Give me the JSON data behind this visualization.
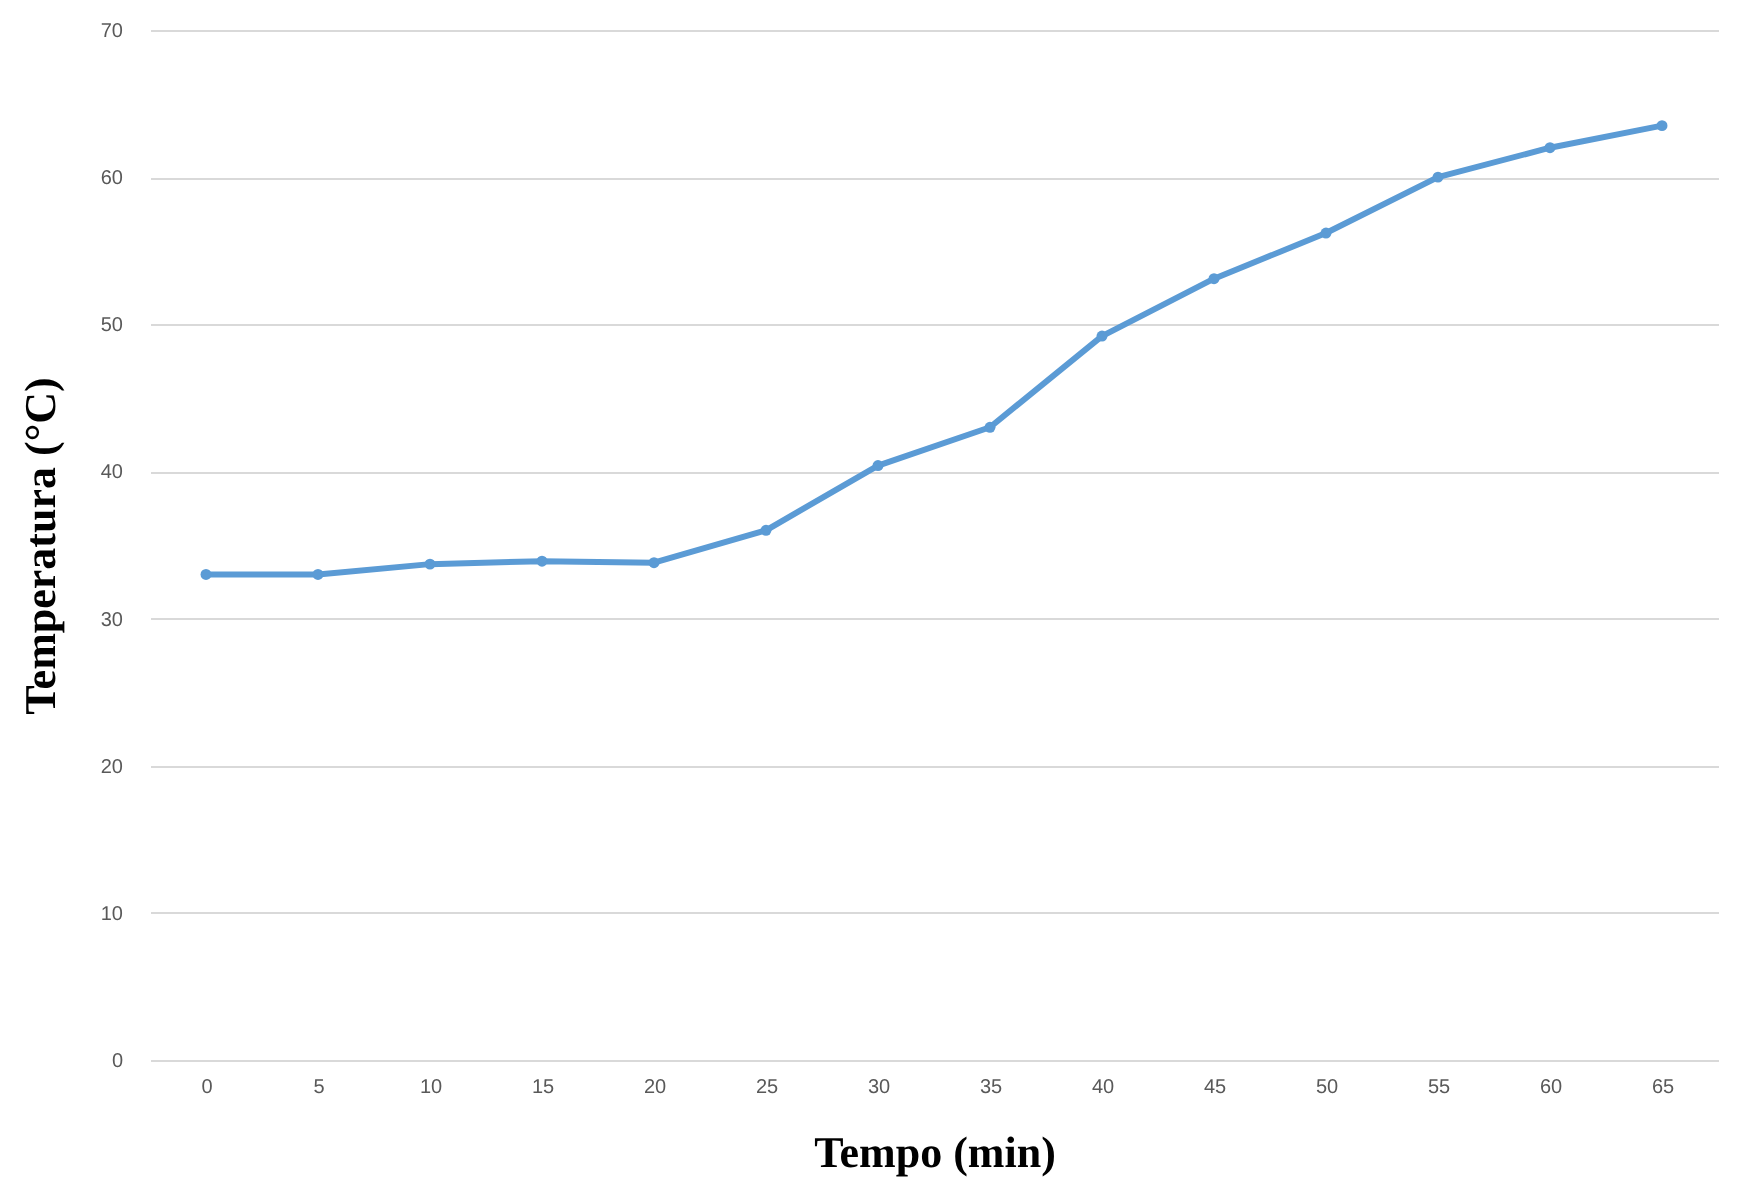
{
  "chart_data": {
    "type": "line",
    "xlabel": "Tempo (min)",
    "ylabel": "Temperatura (°C)",
    "categories": [
      "0",
      "5",
      "10",
      "15",
      "20",
      "25",
      "30",
      "35",
      "40",
      "45",
      "50",
      "55",
      "60",
      "65"
    ],
    "series": [
      {
        "color": "#5b9bd5",
        "values": [
          33,
          33,
          33.7,
          33.9,
          33.8,
          36,
          40.4,
          43,
          49.2,
          53.1,
          56.2,
          60,
          62,
          63.5
        ]
      }
    ],
    "ylim": [
      0,
      70
    ],
    "yticks": [
      0,
      10,
      20,
      30,
      40,
      50,
      60,
      70
    ],
    "grid": "y",
    "marker": "circle",
    "line_style": "solid"
  }
}
